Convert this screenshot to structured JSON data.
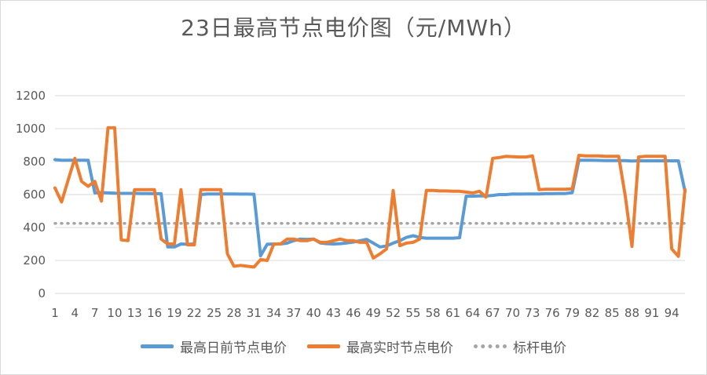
{
  "chart_data": {
    "type": "line",
    "title": "23日最高节点电价图（元/MWh）",
    "xlabel": "",
    "ylabel": "",
    "ylim": [
      0,
      1200
    ],
    "yticks": [
      0,
      200,
      400,
      600,
      800,
      1000,
      1200
    ],
    "x": [
      1,
      2,
      3,
      4,
      5,
      6,
      7,
      8,
      9,
      10,
      11,
      12,
      13,
      14,
      15,
      16,
      17,
      18,
      19,
      20,
      21,
      22,
      23,
      24,
      25,
      26,
      27,
      28,
      29,
      30,
      31,
      32,
      33,
      34,
      35,
      36,
      37,
      38,
      39,
      40,
      41,
      42,
      43,
      44,
      45,
      46,
      47,
      48,
      49,
      50,
      51,
      52,
      53,
      54,
      55,
      56,
      57,
      58,
      59,
      60,
      61,
      62,
      63,
      64,
      65,
      66,
      67,
      68,
      69,
      70,
      71,
      72,
      73,
      74,
      75,
      76,
      77,
      78,
      79,
      80,
      81,
      82,
      83,
      84,
      85,
      86,
      87,
      88,
      89,
      90,
      91,
      92,
      93,
      94,
      95,
      96
    ],
    "xtick_labels": [
      "1",
      "4",
      "7",
      "10",
      "13",
      "16",
      "19",
      "22",
      "25",
      "28",
      "31",
      "34",
      "37",
      "40",
      "43",
      "46",
      "49",
      "52",
      "55",
      "58",
      "61",
      "64",
      "67",
      "70",
      "73",
      "76",
      "79",
      "82",
      "85",
      "88",
      "91",
      "94"
    ],
    "grid": "horizontal",
    "legend_position": "bottom",
    "series": [
      {
        "name": "最高日前节点电价",
        "color": "#5b9bd5",
        "style": "solid",
        "values": [
          812,
          808,
          808,
          808,
          808,
          808,
          610,
          612,
          610,
          608,
          607,
          607,
          607,
          606,
          606,
          605,
          605,
          282,
          282,
          300,
          298,
          300,
          600,
          604,
          604,
          604,
          604,
          604,
          603,
          603,
          602,
          228,
          298,
          300,
          300,
          305,
          320,
          330,
          328,
          330,
          306,
          302,
          300,
          302,
          306,
          312,
          320,
          328,
          305,
          282,
          288,
          305,
          320,
          340,
          350,
          340,
          335,
          335,
          335,
          335,
          335,
          338,
          590,
          590,
          592,
          592,
          595,
          600,
          600,
          604,
          603,
          604,
          604,
          604,
          605,
          605,
          606,
          606,
          612,
          808,
          808,
          808,
          807,
          806,
          806,
          806,
          806,
          804,
          805,
          805,
          805,
          805,
          805,
          805,
          805,
          620
        ]
      },
      {
        "name": "最高实时节点电价",
        "color": "#ed7d31",
        "style": "solid",
        "values": [
          640,
          555,
          690,
          820,
          680,
          650,
          680,
          560,
          1005,
          1005,
          325,
          320,
          630,
          630,
          630,
          630,
          330,
          300,
          300,
          630,
          295,
          295,
          630,
          630,
          630,
          630,
          240,
          165,
          170,
          165,
          160,
          205,
          200,
          300,
          300,
          330,
          330,
          320,
          320,
          330,
          310,
          310,
          320,
          330,
          320,
          320,
          310,
          310,
          215,
          240,
          270,
          625,
          290,
          305,
          310,
          330,
          625,
          625,
          622,
          622,
          620,
          620,
          615,
          610,
          620,
          585,
          820,
          825,
          832,
          830,
          828,
          828,
          835,
          630,
          632,
          632,
          632,
          632,
          635,
          838,
          835,
          835,
          835,
          832,
          832,
          832,
          590,
          285,
          828,
          832,
          832,
          832,
          832,
          270,
          225,
          630
        ]
      },
      {
        "name": "标杆电价",
        "color": "#a5a5a5",
        "style": "dotted",
        "values": [
          425,
          425,
          425,
          425,
          425,
          425,
          425,
          425,
          425,
          425,
          425,
          425,
          425,
          425,
          425,
          425,
          425,
          425,
          425,
          425,
          425,
          425,
          425,
          425,
          425,
          425,
          425,
          425,
          425,
          425,
          425,
          425,
          425,
          425,
          425,
          425,
          425,
          425,
          425,
          425,
          425,
          425,
          425,
          425,
          425,
          425,
          425,
          425,
          425,
          425,
          425,
          425,
          425,
          425,
          425,
          425,
          425,
          425,
          425,
          425,
          425,
          425,
          425,
          425,
          425,
          425,
          425,
          425,
          425,
          425,
          425,
          425,
          425,
          425,
          425,
          425,
          425,
          425,
          425,
          425,
          425,
          425,
          425,
          425,
          425,
          425,
          425,
          425,
          425,
          425,
          425,
          425,
          425,
          425,
          425,
          425
        ]
      }
    ]
  }
}
